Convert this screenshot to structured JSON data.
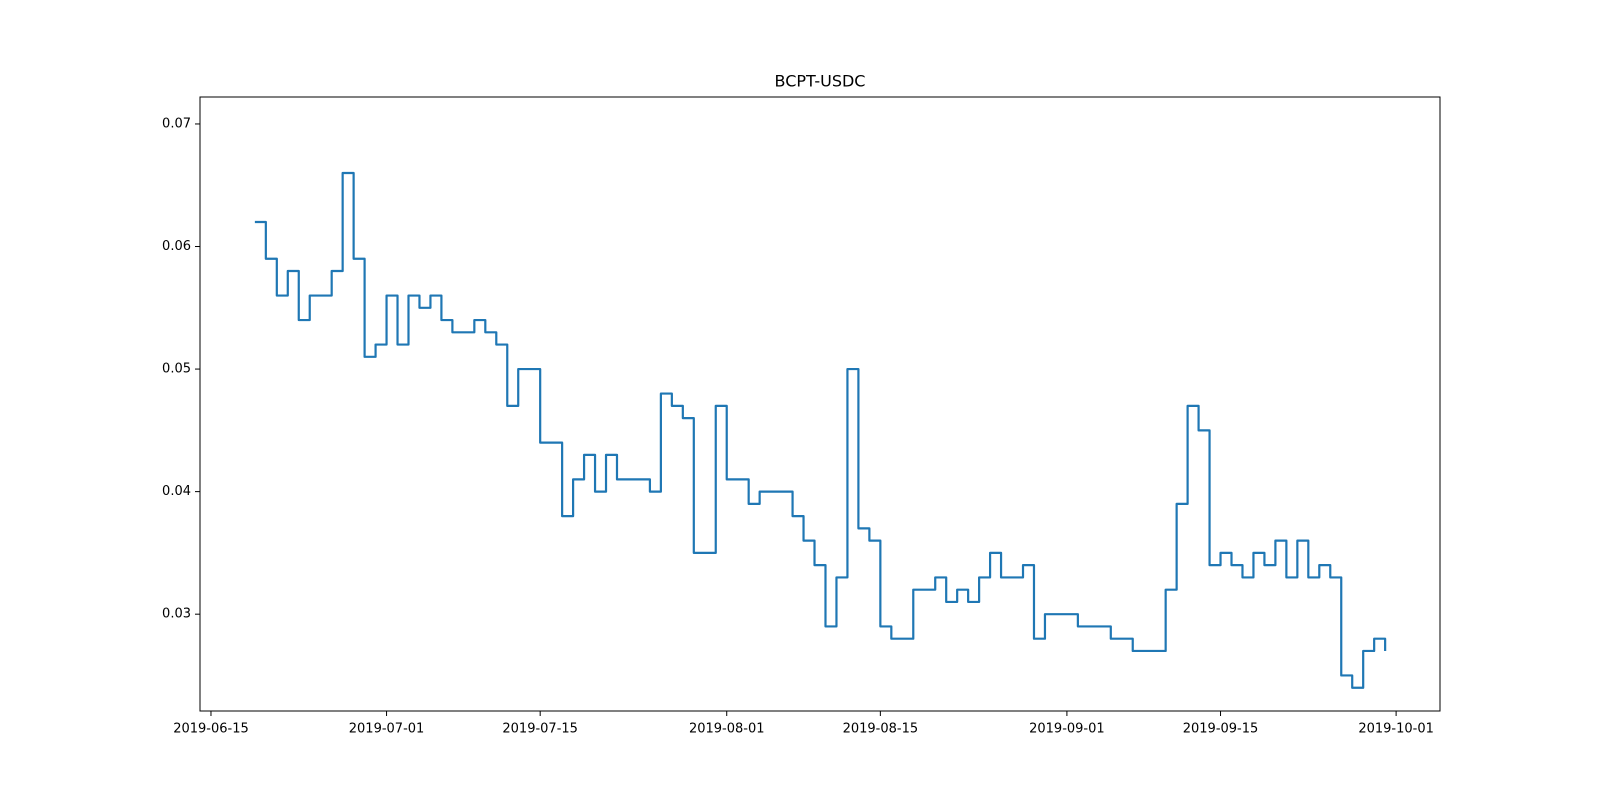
{
  "chart_data": {
    "type": "line",
    "title": "BCPT-USDC",
    "x": [
      "2019-06-19",
      "2019-06-20",
      "2019-06-21",
      "2019-06-22",
      "2019-06-23",
      "2019-06-24",
      "2019-06-25",
      "2019-06-26",
      "2019-06-27",
      "2019-06-28",
      "2019-06-29",
      "2019-06-30",
      "2019-07-01",
      "2019-07-02",
      "2019-07-03",
      "2019-07-04",
      "2019-07-05",
      "2019-07-06",
      "2019-07-07",
      "2019-07-08",
      "2019-07-09",
      "2019-07-10",
      "2019-07-11",
      "2019-07-12",
      "2019-07-13",
      "2019-07-14",
      "2019-07-15",
      "2019-07-16",
      "2019-07-17",
      "2019-07-18",
      "2019-07-19",
      "2019-07-20",
      "2019-07-21",
      "2019-07-22",
      "2019-07-23",
      "2019-07-24",
      "2019-07-25",
      "2019-07-26",
      "2019-07-27",
      "2019-07-28",
      "2019-07-29",
      "2019-07-30",
      "2019-07-31",
      "2019-08-01",
      "2019-08-02",
      "2019-08-03",
      "2019-08-04",
      "2019-08-05",
      "2019-08-06",
      "2019-08-07",
      "2019-08-08",
      "2019-08-09",
      "2019-08-10",
      "2019-08-11",
      "2019-08-12",
      "2019-08-13",
      "2019-08-14",
      "2019-08-15",
      "2019-08-16",
      "2019-08-17",
      "2019-08-18",
      "2019-08-19",
      "2019-08-20",
      "2019-08-21",
      "2019-08-22",
      "2019-08-23",
      "2019-08-24",
      "2019-08-25",
      "2019-08-26",
      "2019-08-27",
      "2019-08-28",
      "2019-08-29",
      "2019-08-30",
      "2019-08-31",
      "2019-09-01",
      "2019-09-02",
      "2019-09-03",
      "2019-09-04",
      "2019-09-05",
      "2019-09-06",
      "2019-09-07",
      "2019-09-08",
      "2019-09-09",
      "2019-09-10",
      "2019-09-11",
      "2019-09-12",
      "2019-09-13",
      "2019-09-14",
      "2019-09-15",
      "2019-09-16",
      "2019-09-17",
      "2019-09-18",
      "2019-09-19",
      "2019-09-20",
      "2019-09-21",
      "2019-09-22",
      "2019-09-23",
      "2019-09-24",
      "2019-09-25",
      "2019-09-26",
      "2019-09-27",
      "2019-09-28",
      "2019-09-29",
      "2019-09-30"
    ],
    "series": [
      {
        "name": "BCPT-USDC",
        "color": "#1f77b4",
        "values": [
          0.062,
          0.059,
          0.056,
          0.058,
          0.054,
          0.056,
          0.056,
          0.058,
          0.066,
          0.059,
          0.051,
          0.052,
          0.056,
          0.052,
          0.056,
          0.055,
          0.056,
          0.054,
          0.053,
          0.053,
          0.054,
          0.053,
          0.052,
          0.047,
          0.05,
          0.05,
          0.044,
          0.044,
          0.038,
          0.041,
          0.043,
          0.04,
          0.043,
          0.041,
          0.041,
          0.041,
          0.04,
          0.048,
          0.047,
          0.046,
          0.035,
          0.035,
          0.047,
          0.041,
          0.041,
          0.039,
          0.04,
          0.04,
          0.04,
          0.038,
          0.036,
          0.034,
          0.029,
          0.033,
          0.05,
          0.037,
          0.036,
          0.029,
          0.028,
          0.028,
          0.032,
          0.032,
          0.033,
          0.031,
          0.032,
          0.031,
          0.033,
          0.035,
          0.033,
          0.033,
          0.034,
          0.028,
          0.03,
          0.03,
          0.03,
          0.029,
          0.029,
          0.029,
          0.028,
          0.028,
          0.027,
          0.027,
          0.027,
          0.032,
          0.039,
          0.047,
          0.045,
          0.034,
          0.035,
          0.034,
          0.033,
          0.035,
          0.034,
          0.036,
          0.033,
          0.036,
          0.033,
          0.034,
          0.033,
          0.025,
          0.024,
          0.027,
          0.028,
          0.027
        ]
      }
    ],
    "xlim": [
      "2019-06-14",
      "2019-10-05"
    ],
    "xticks": [
      "2019-06-15",
      "2019-07-01",
      "2019-07-15",
      "2019-08-01",
      "2019-08-15",
      "2019-09-01",
      "2019-09-15",
      "2019-10-01"
    ],
    "ylim": [
      0.0221,
      0.0722
    ],
    "yticks": [
      0.03,
      0.04,
      0.05,
      0.06,
      0.07
    ],
    "drawstyle": "steps-post"
  }
}
